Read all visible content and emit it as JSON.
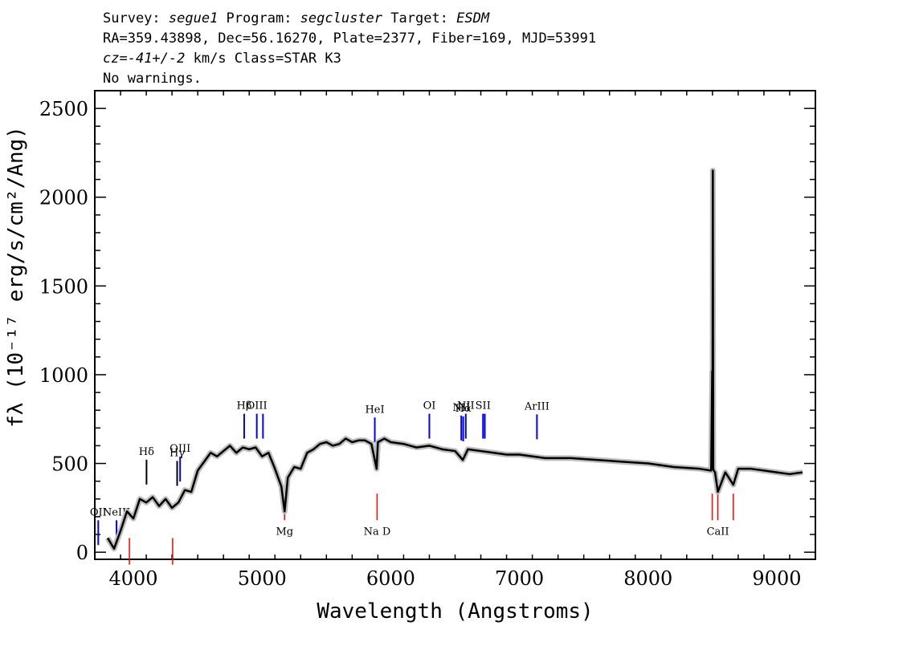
{
  "header": {
    "survey_label": "Survey: ",
    "survey": "segue1",
    "program_label": " Program: ",
    "program": "segcluster",
    "target_label": " Target: ",
    "target": "ESDM",
    "line2": "RA=359.43898, Dec=56.16270, Plate=2377, Fiber=169, MJD=53991",
    "cz_label": "cz=",
    "cz_value": "-41+/-2",
    "cz_rest": " km/s Class=STAR K3",
    "line4": "No warnings."
  },
  "chart_data": {
    "type": "line",
    "title": "",
    "xlabel": "Wavelength (Angstroms)",
    "ylabel": "fλ (10⁻¹⁷ erg/s/cm²/Ang)",
    "xlim": [
      3700,
      9300
    ],
    "ylim": [
      -40,
      2600
    ],
    "xticks": [
      4000,
      5000,
      6000,
      7000,
      8000,
      9000
    ],
    "yticks": [
      0,
      500,
      1000,
      1500,
      2000,
      2500
    ],
    "grid": false,
    "series": [
      {
        "name": "flux",
        "color": "#000000",
        "x": [
          3800,
          3850,
          3900,
          3950,
          4000,
          4050,
          4100,
          4150,
          4200,
          4250,
          4300,
          4350,
          4400,
          4450,
          4500,
          4550,
          4600,
          4650,
          4700,
          4750,
          4800,
          4850,
          4900,
          4950,
          5000,
          5050,
          5100,
          5150,
          5175,
          5200,
          5250,
          5300,
          5350,
          5400,
          5450,
          5500,
          5550,
          5600,
          5650,
          5700,
          5750,
          5800,
          5850,
          5890,
          5900,
          5950,
          6000,
          6100,
          6200,
          6300,
          6400,
          6500,
          6560,
          6600,
          6700,
          6800,
          6900,
          7000,
          7200,
          7400,
          7600,
          7800,
          8000,
          8200,
          8400,
          8490,
          8498,
          8500,
          8503,
          8506,
          8510,
          8520,
          8542,
          8600,
          8662,
          8700,
          8800,
          8900,
          9000,
          9100,
          9200
        ],
        "values": [
          80,
          20,
          120,
          230,
          190,
          300,
          280,
          310,
          260,
          300,
          250,
          280,
          350,
          340,
          460,
          510,
          560,
          540,
          570,
          600,
          560,
          590,
          580,
          590,
          540,
          560,
          470,
          370,
          230,
          420,
          480,
          470,
          560,
          580,
          610,
          620,
          600,
          610,
          640,
          620,
          630,
          630,
          610,
          470,
          620,
          640,
          620,
          610,
          590,
          600,
          580,
          570,
          520,
          580,
          570,
          560,
          550,
          550,
          530,
          530,
          520,
          510,
          500,
          480,
          470,
          460,
          1020,
          470,
          2150,
          470,
          460,
          450,
          340,
          450,
          380,
          470,
          470,
          460,
          450,
          440,
          450
        ]
      }
    ],
    "emission_lines": [
      {
        "label": "OII",
        "wavelength": 3727,
        "color": "#0000ff"
      },
      {
        "label": "NeIII",
        "wavelength": 3869,
        "color": "#0000ff"
      },
      {
        "label": "Hδ",
        "wavelength": 4102,
        "color": "#000000"
      },
      {
        "label": "Hγ",
        "wavelength": 4340,
        "color": "#000000"
      },
      {
        "label": "OIII",
        "wavelength": 4363,
        "color": "#0000ff"
      },
      {
        "label": "Hβ",
        "wavelength": 4861,
        "color": "#0000ff"
      },
      {
        "label": "OIII",
        "wavelength": 4959,
        "color": "#0000ff"
      },
      {
        "label": "",
        "wavelength": 5007,
        "color": "#0000ff"
      },
      {
        "label": "HeI",
        "wavelength": 5876,
        "color": "#0000ff"
      },
      {
        "label": "OI",
        "wavelength": 6300,
        "color": "#0000ff"
      },
      {
        "label": "NII",
        "wavelength": 6548,
        "color": "#0000ff"
      },
      {
        "label": "Hα",
        "wavelength": 6563,
        "color": "#0000ff"
      },
      {
        "label": "NII",
        "wavelength": 6583,
        "color": "#0000ff"
      },
      {
        "label": "SII",
        "wavelength": 6717,
        "color": "#0000ff"
      },
      {
        "label": "",
        "wavelength": 6731,
        "color": "#0000ff"
      },
      {
        "label": "ArIII",
        "wavelength": 7136,
        "color": "#0000ff"
      }
    ],
    "absorption_lines": [
      {
        "label": "",
        "wavelength": 3969,
        "color": "#ff0000"
      },
      {
        "label": "",
        "wavelength": 4305,
        "color": "#ff0000"
      },
      {
        "label": "Mg",
        "wavelength": 5175,
        "color": "#ff0000"
      },
      {
        "label": "Na D",
        "wavelength": 5894,
        "color": "#ff0000"
      },
      {
        "label": "CaII",
        "wavelength": 8542,
        "color": "#ff0000"
      },
      {
        "label": "",
        "wavelength": 8498,
        "color": "#ff0000"
      },
      {
        "label": "",
        "wavelength": 8662,
        "color": "#ff0000"
      }
    ]
  }
}
